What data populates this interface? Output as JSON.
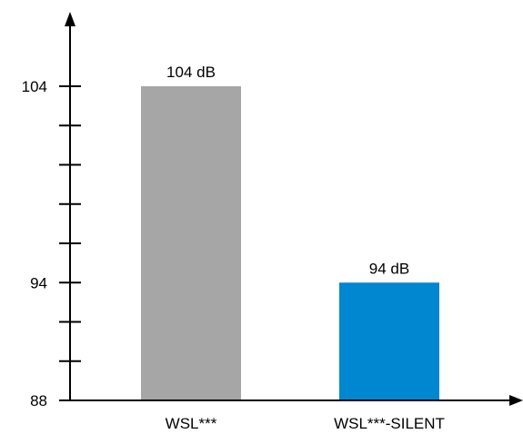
{
  "chart_data": {
    "type": "bar",
    "categories": [
      "WSL***",
      "WSL***-SILENT"
    ],
    "values": [
      104,
      94
    ],
    "data_labels": [
      "104 dB",
      "94 dB"
    ],
    "bar_colors": [
      "#a6a6a6",
      "#0087d0"
    ],
    "ylim": [
      88,
      105.5
    ],
    "minor_tick_values": [
      88,
      90,
      92,
      94,
      96,
      98,
      100,
      102,
      104
    ],
    "tick_labels": [
      {
        "value": 104,
        "label": "104"
      },
      {
        "value": 94,
        "label": "94"
      },
      {
        "value": 88,
        "label": "88"
      }
    ],
    "title": "",
    "xlabel": "",
    "ylabel": "",
    "grid": false,
    "legend": "none"
  }
}
